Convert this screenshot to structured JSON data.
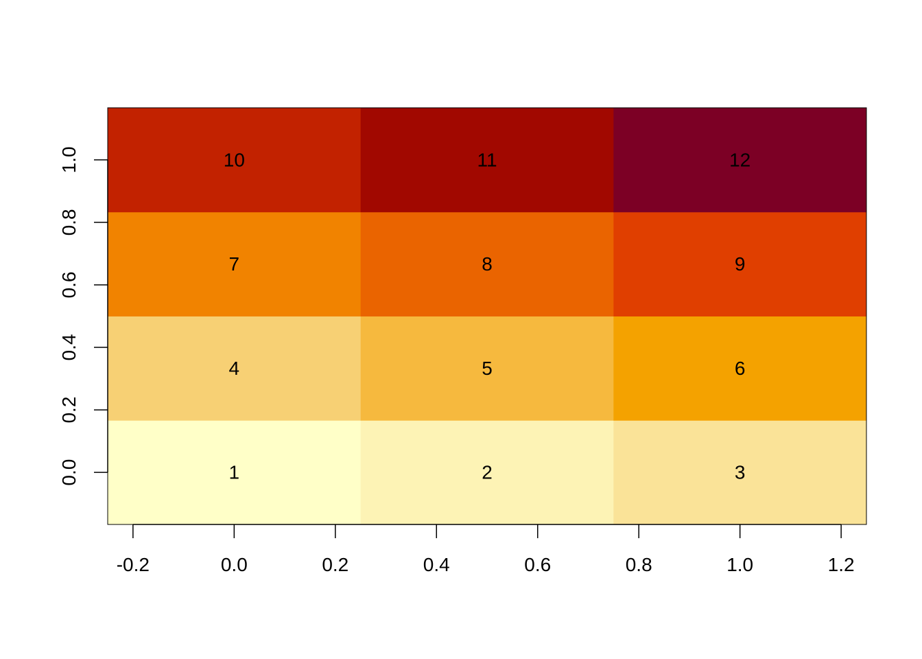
{
  "chart_data": {
    "type": "heatmap",
    "title": "",
    "xlabel": "",
    "ylabel": "",
    "x": [
      0.0,
      0.5,
      1.0
    ],
    "y": [
      0.0,
      0.3333,
      0.6667,
      1.0
    ],
    "xlim": [
      -0.25,
      1.25
    ],
    "ylim": [
      -0.1667,
      1.1667
    ],
    "x_ticks": [
      "-0.2",
      "0.0",
      "0.2",
      "0.4",
      "0.6",
      "0.8",
      "1.0",
      "1.2"
    ],
    "y_ticks": [
      "0.0",
      "0.2",
      "0.4",
      "0.6",
      "0.8",
      "1.0"
    ],
    "values": [
      [
        1,
        2,
        3
      ],
      [
        4,
        5,
        6
      ],
      [
        7,
        8,
        9
      ],
      [
        10,
        11,
        12
      ]
    ],
    "colors": [
      [
        "#FFFFC8",
        "#FDF3B5",
        "#FAE398"
      ],
      [
        "#F7D074",
        "#F6B93E",
        "#F4A200"
      ],
      [
        "#F18300",
        "#EA6400",
        "#E03F00"
      ],
      [
        "#C22200",
        "#A10800",
        "#7C0025"
      ]
    ],
    "cell_labels": [
      [
        "1",
        "2",
        "3"
      ],
      [
        "4",
        "5",
        "6"
      ],
      [
        "7",
        "8",
        "9"
      ],
      [
        "10",
        "11",
        "12"
      ]
    ],
    "grid": false,
    "legend": "none"
  }
}
